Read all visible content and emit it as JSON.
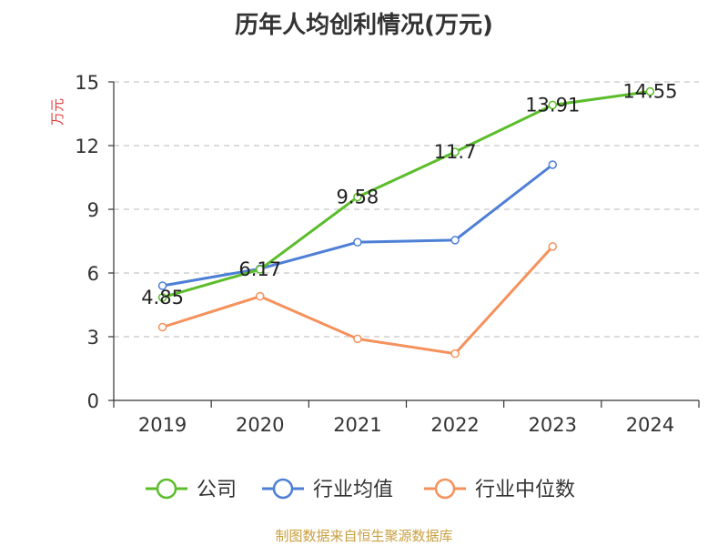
{
  "chart_data": {
    "type": "line",
    "title": "历年人均创利情况(万元)",
    "ylabel": "万元",
    "ylim": [
      0,
      15
    ],
    "yticks": [
      0,
      3,
      6,
      9,
      12,
      15
    ],
    "categories": [
      "2019",
      "2020",
      "2021",
      "2022",
      "2023",
      "2024"
    ],
    "grid": true,
    "legend_position": "bottom",
    "series": [
      {
        "name": "公司",
        "color": "#5cbd2b",
        "values": [
          4.85,
          6.17,
          9.58,
          11.7,
          13.91,
          14.55
        ],
        "labels": [
          "4.85",
          "6.17",
          "9.58",
          "11.7",
          "13.91",
          "14.55"
        ]
      },
      {
        "name": "行业均值",
        "color": "#4e7fd6",
        "values": [
          5.4,
          6.2,
          7.45,
          7.55,
          11.1,
          null
        ]
      },
      {
        "name": "行业中位数",
        "color": "#f5925c",
        "values": [
          3.45,
          4.9,
          2.9,
          2.2,
          7.25,
          null
        ]
      }
    ]
  },
  "source": "制图数据来自恒生聚源数据库",
  "colors": {
    "ylabel": "#e03c3c",
    "source": "#c8a040",
    "axis": "#333333",
    "grid": "#c8c8c8"
  }
}
